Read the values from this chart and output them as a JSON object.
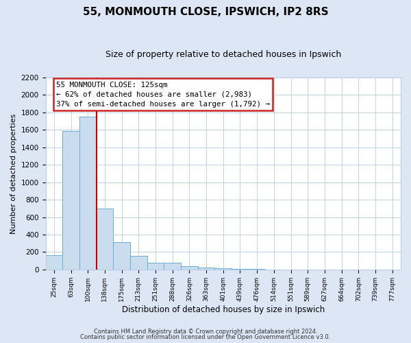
{
  "title": "55, MONMOUTH CLOSE, IPSWICH, IP2 8RS",
  "subtitle": "Size of property relative to detached houses in Ipswich",
  "xlabel": "Distribution of detached houses by size in Ipswich",
  "ylabel": "Number of detached properties",
  "categories": [
    "25sqm",
    "63sqm",
    "100sqm",
    "138sqm",
    "175sqm",
    "213sqm",
    "251sqm",
    "288sqm",
    "326sqm",
    "363sqm",
    "401sqm",
    "439sqm",
    "476sqm",
    "514sqm",
    "551sqm",
    "589sqm",
    "627sqm",
    "664sqm",
    "702sqm",
    "739sqm",
    "777sqm"
  ],
  "values": [
    160,
    1590,
    1750,
    700,
    315,
    155,
    80,
    75,
    40,
    20,
    15,
    10,
    10,
    0,
    0,
    0,
    0,
    0,
    0,
    0,
    0
  ],
  "bar_color": "#c9ddef",
  "bar_edge_color": "#6aaed6",
  "red_line_x": 3.0,
  "annotation_title": "55 MONMOUTH CLOSE: 125sqm",
  "annotation_line1": "← 62% of detached houses are smaller (2,983)",
  "annotation_line2": "37% of semi-detached houses are larger (1,792) →",
  "ylim": [
    0,
    2200
  ],
  "yticks": [
    0,
    200,
    400,
    600,
    800,
    1000,
    1200,
    1400,
    1600,
    1800,
    2000,
    2200
  ],
  "footer_line1": "Contains HM Land Registry data © Crown copyright and database right 2024.",
  "footer_line2": "Contains public sector information licensed under the Open Government Licence v3.0.",
  "outer_bg_color": "#dce6f5",
  "plot_bg_color": "#ffffff",
  "grid_color": "#b8cce4",
  "title_fontsize": 11,
  "subtitle_fontsize": 9
}
